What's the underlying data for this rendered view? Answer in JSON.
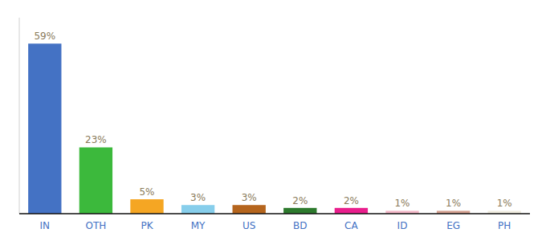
{
  "chart_data": {
    "type": "bar",
    "categories": [
      "IN",
      "OTH",
      "PK",
      "MY",
      "US",
      "BD",
      "CA",
      "ID",
      "EG",
      "PH"
    ],
    "values": [
      59,
      23,
      5,
      3,
      3,
      2,
      2,
      1,
      1,
      1
    ],
    "value_labels": [
      "59%",
      "23%",
      "5%",
      "3%",
      "3%",
      "2%",
      "2%",
      "1%",
      "1%",
      "1%"
    ],
    "colors": [
      "#4472c4",
      "#3cb93c",
      "#f5a623",
      "#87ceeb",
      "#b5651d",
      "#2d7a2d",
      "#e91e8c",
      "#f4b8c8",
      "#d4a090",
      "#f0ede0"
    ],
    "ylim": [
      0,
      68
    ],
    "data_labels": true,
    "tick_labels": "x",
    "grid": false
  }
}
